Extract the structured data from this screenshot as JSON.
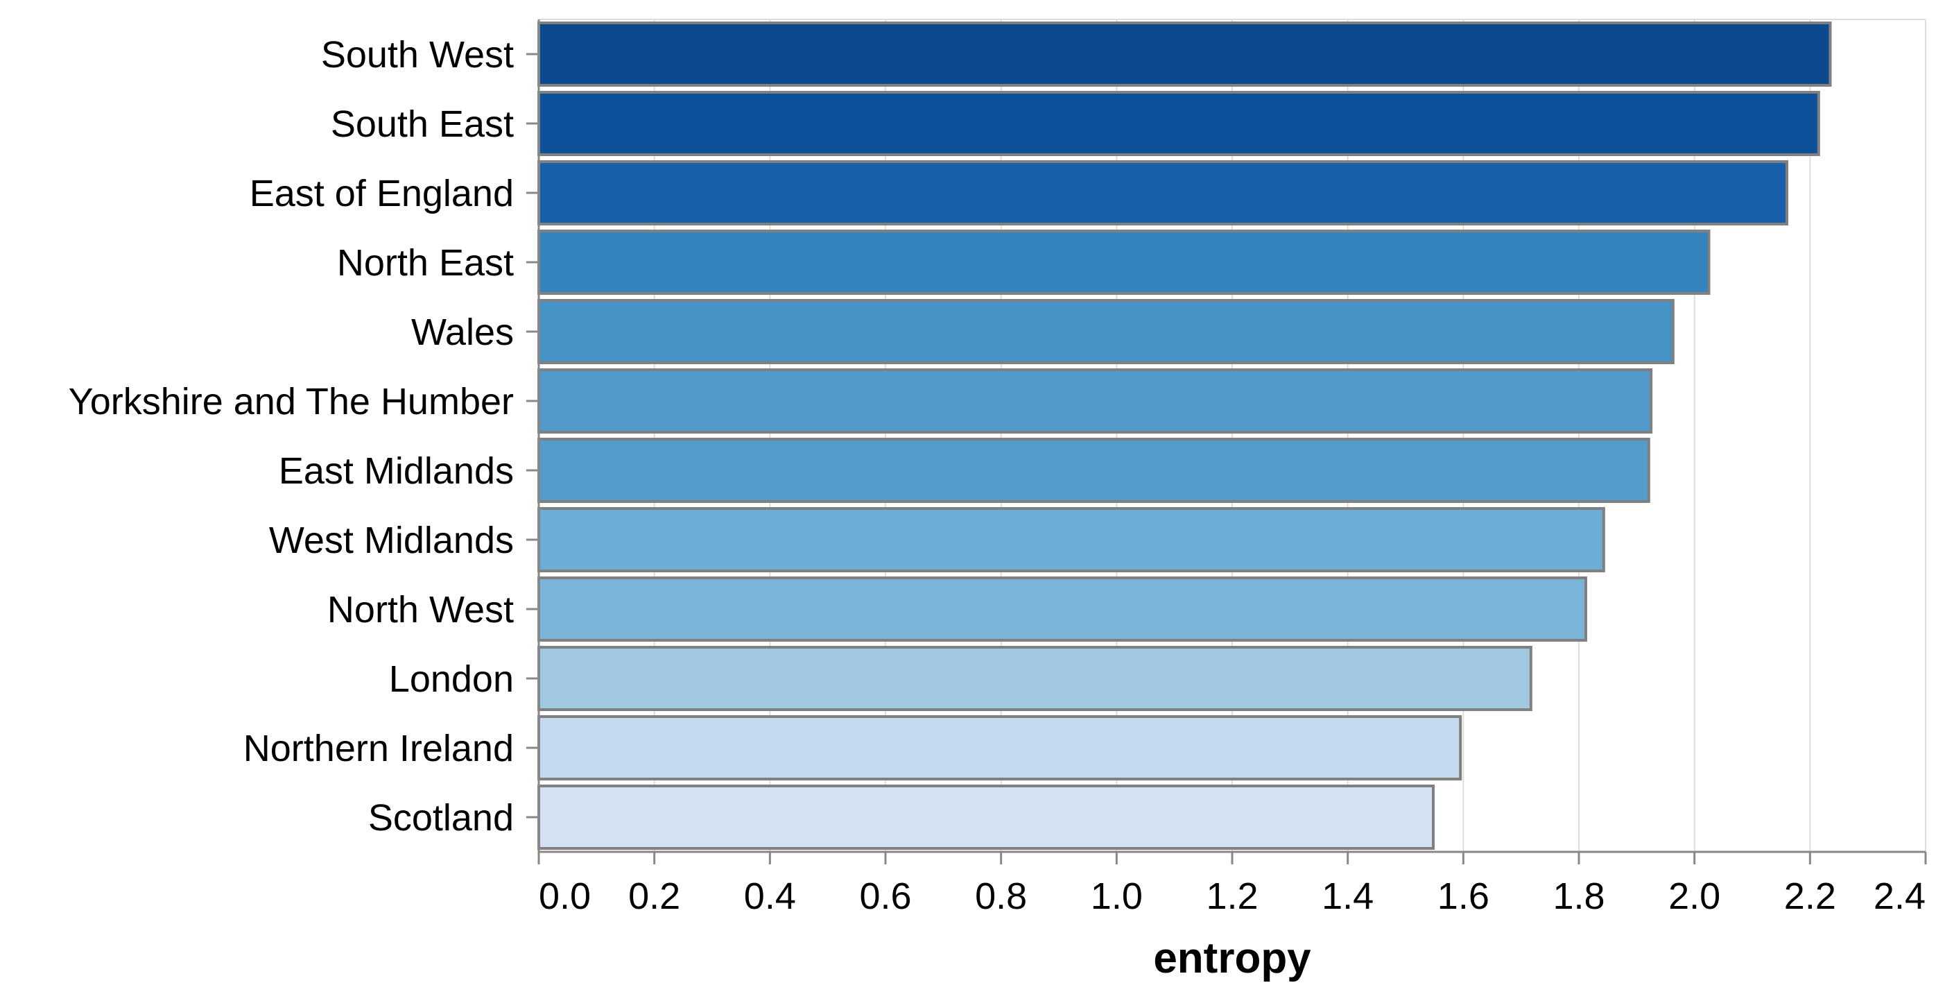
{
  "chart_data": {
    "type": "bar",
    "orientation": "horizontal",
    "xlabel": "entropy",
    "ylabel": "",
    "xlim": [
      0,
      2.4
    ],
    "x_ticks": [
      "0.0",
      "0.2",
      "0.4",
      "0.6",
      "0.8",
      "1.0",
      "1.2",
      "1.4",
      "1.6",
      "1.8",
      "2.0",
      "2.2",
      "2.4"
    ],
    "grid": "vertical",
    "categories": [
      "South West",
      "South East",
      "East of England",
      "North East",
      "Wales",
      "Yorkshire and The Humber",
      "East Midlands",
      "West Midlands",
      "North West",
      "London",
      "Northern Ireland",
      "Scotland"
    ],
    "values": [
      2.235,
      2.215,
      2.16,
      2.025,
      1.963,
      1.925,
      1.921,
      1.843,
      1.812,
      1.717,
      1.595,
      1.548
    ],
    "colors": [
      "#0b4a8f",
      "#0d519a",
      "#1760aa",
      "#3484c0",
      "#4592c6",
      "#5099ca",
      "#529bcb",
      "#6badd4",
      "#7bb4d8",
      "#a0c9e1",
      "#c5daee",
      "#d2e2f2"
    ],
    "bar_stroke": "#808080",
    "axis_color": "#888888",
    "grid_color": "#dddddd"
  }
}
